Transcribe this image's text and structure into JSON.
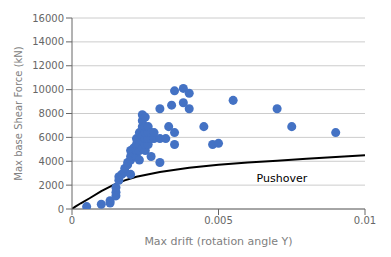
{
  "chart_data": {
    "type": "scatter",
    "xlabel": "Max drift (rotation angle Y)",
    "ylabel": "Max base Shear Force (kN)",
    "xlim": [
      0,
      0.01
    ],
    "ylim": [
      0,
      16000
    ],
    "xticks": [
      0,
      0.005,
      0.01
    ],
    "yticks": [
      0,
      2000,
      4000,
      6000,
      8000,
      10000,
      12000,
      14000,
      16000
    ],
    "grid": "y",
    "annotations": [
      {
        "text": "Pushover",
        "x": 0.0063,
        "y": 2600
      }
    ],
    "series": [
      {
        "type": "line",
        "color": "#000000",
        "marker": "none",
        "x": [
          0,
          0.0001,
          0.0003,
          0.0006,
          0.001,
          0.0014,
          0.0018,
          0.0022,
          0.003,
          0.004,
          0.005,
          0.006,
          0.007,
          0.008,
          0.009,
          0.01
        ],
        "values": [
          0,
          180,
          480,
          900,
          1500,
          2000,
          2400,
          2700,
          3100,
          3450,
          3700,
          3900,
          4050,
          4200,
          4350,
          4500
        ]
      },
      {
        "type": "scatter",
        "color": "#4472c4",
        "marker": "circle",
        "x": [
          0.0005,
          0.001,
          0.0013,
          0.0013,
          0.0015,
          0.0015,
          0.0015,
          0.0016,
          0.0016,
          0.0017,
          0.0018,
          0.0018,
          0.0019,
          0.0019,
          0.002,
          0.002,
          0.002,
          0.002,
          0.0021,
          0.0021,
          0.0022,
          0.0022,
          0.0022,
          0.0022,
          0.0023,
          0.0023,
          0.0023,
          0.0023,
          0.0024,
          0.0024,
          0.0024,
          0.0024,
          0.0024,
          0.0024,
          0.0025,
          0.0025,
          0.0025,
          0.0025,
          0.0025,
          0.0025,
          0.0026,
          0.0026,
          0.0026,
          0.0026,
          0.0027,
          0.0027,
          0.0027,
          0.0028,
          0.0028,
          0.003,
          0.003,
          0.003,
          0.0032,
          0.0033,
          0.0034,
          0.0035,
          0.0035,
          0.0035,
          0.0038,
          0.0038,
          0.004,
          0.004,
          0.0045,
          0.0048,
          0.005,
          0.0055,
          0.007,
          0.0075,
          0.009
        ],
        "values": [
          200,
          400,
          700,
          500,
          1100,
          1400,
          1800,
          2400,
          2700,
          2900,
          3100,
          3400,
          3700,
          3900,
          2900,
          4100,
          4400,
          4900,
          4700,
          5100,
          4400,
          4900,
          5400,
          5900,
          4100,
          4900,
          5400,
          6400,
          5100,
          5700,
          6100,
          6900,
          7400,
          7900,
          4900,
          5400,
          5900,
          6400,
          6900,
          7700,
          5400,
          5900,
          6400,
          6900,
          4400,
          5900,
          6400,
          5900,
          6400,
          3900,
          5900,
          8400,
          5900,
          6900,
          8700,
          5400,
          6400,
          9900,
          8900,
          10100,
          8400,
          9700,
          6900,
          5400,
          5500,
          9100,
          8400,
          6900,
          6400
        ]
      }
    ]
  }
}
